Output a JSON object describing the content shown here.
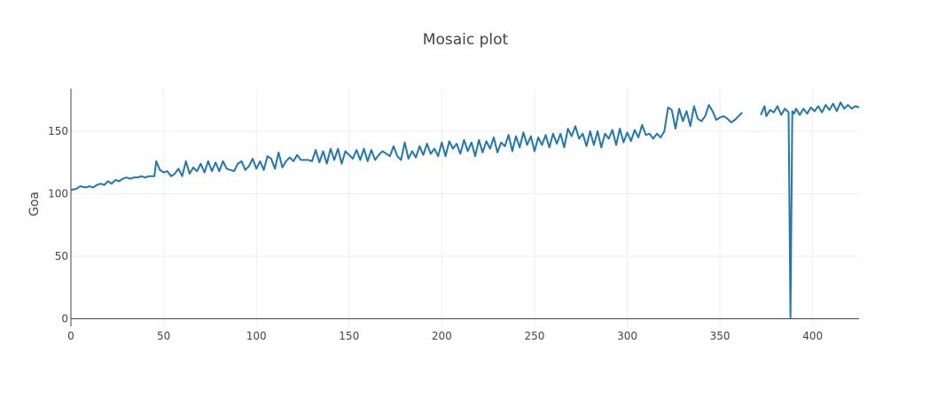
{
  "chart_data": {
    "type": "line",
    "title": "Mosaic plot",
    "xlabel": "",
    "ylabel": "Goa",
    "xlim": [
      0,
      425
    ],
    "ylim": [
      -6,
      184
    ],
    "x_ticks": [
      0,
      50,
      100,
      150,
      200,
      250,
      300,
      350,
      400
    ],
    "y_ticks": [
      0,
      50,
      100,
      150
    ],
    "grid": true,
    "legend": "none",
    "colors": {
      "series": "#1f77b4",
      "grid": "#eeeeee",
      "axis": "#444444",
      "text": "#444444"
    },
    "series": [
      {
        "segments": [
          {
            "x": [
              0,
              3,
              5,
              8,
              10,
              12,
              14,
              16,
              18,
              20,
              22,
              24,
              26,
              28,
              30,
              32,
              34,
              36,
              38,
              40,
              42,
              45,
              46,
              48,
              50,
              52,
              54,
              56,
              58,
              60,
              62,
              64,
              66,
              68,
              70,
              72,
              74,
              76,
              78,
              80,
              82,
              84,
              86,
              88,
              90,
              92,
              94,
              96,
              98,
              100,
              102,
              104,
              106,
              108,
              110,
              112,
              114,
              116,
              118,
              120,
              122,
              124,
              126,
              128,
              130,
              132,
              134,
              136,
              138,
              140,
              142,
              144,
              146,
              148,
              150,
              152,
              154,
              156,
              158,
              160,
              162,
              164,
              166,
              168,
              170,
              172,
              174,
              176,
              178,
              180,
              182,
              184,
              186,
              188,
              190,
              192,
              194,
              196,
              198,
              200,
              202,
              204,
              206,
              208,
              210,
              212,
              214,
              216,
              218,
              220,
              222,
              224,
              226,
              228,
              230,
              232,
              234,
              236,
              238,
              240,
              242,
              244,
              246,
              248,
              250,
              252,
              254,
              256,
              258,
              260,
              262,
              264,
              266,
              268,
              270,
              272,
              274,
              276,
              278,
              280,
              282,
              284,
              286,
              288,
              290,
              292,
              294,
              296,
              298,
              300,
              302,
              304,
              306,
              308,
              310,
              312,
              314,
              316,
              318,
              320,
              322,
              324,
              326,
              328,
              330,
              332,
              334,
              336,
              338,
              340,
              342,
              344,
              346,
              348,
              350,
              352,
              354,
              356,
              358,
              360,
              362
            ],
            "y": [
              103,
              104,
              106,
              105,
              106,
              105,
              107,
              108,
              107,
              110,
              108,
              111,
              110,
              112,
              113,
              112,
              113,
              113,
              114,
              113,
              114,
              114,
              126,
              119,
              117,
              118,
              114,
              116,
              120,
              114,
              126,
              116,
              121,
              118,
              124,
              117,
              126,
              118,
              125,
              118,
              126,
              120,
              119,
              118,
              124,
              126,
              119,
              122,
              128,
              120,
              126,
              119,
              130,
              128,
              120,
              133,
              121,
              126,
              129,
              126,
              131,
              127,
              127,
              127,
              126,
              135,
              125,
              134,
              124,
              136,
              127,
              136,
              124,
              134,
              131,
              128,
              135,
              127,
              136,
              126,
              135,
              127,
              131,
              134,
              132,
              130,
              138,
              130,
              127,
              141,
              128,
              134,
              129,
              138,
              131,
              140,
              132,
              136,
              130,
              141,
              130,
              142,
              136,
              140,
              132,
              143,
              134,
              141,
              130,
              143,
              133,
              142,
              136,
              145,
              133,
              141,
              138,
              147,
              134,
              146,
              137,
              149,
              139,
              146,
              134,
              145,
              139,
              147,
              137,
              148,
              140,
              148,
              137,
              152,
              146,
              154,
              144,
              148,
              138,
              150,
              139,
              150,
              137,
              148,
              144,
              151,
              139,
              152,
              141,
              149,
              142,
              151,
              145,
              155,
              147,
              148,
              144,
              148,
              145,
              150,
              169,
              167,
              152,
              168,
              158,
              166,
              154,
              170,
              160,
              158,
              162,
              171,
              166,
              159,
              161,
              162,
              160,
              157,
              159,
              162,
              165
            ]
          },
          {
            "x": [
              372,
              374,
              375,
              377,
              379,
              381,
              383,
              385,
              387,
              388,
              389,
              390,
              391,
              393,
              395,
              397,
              399,
              401,
              403,
              405,
              407,
              409,
              411,
              413,
              415,
              417,
              419,
              421,
              423,
              425
            ],
            "y": [
              163,
              170,
              162,
              167,
              165,
              170,
              163,
              168,
              165,
              1,
              166,
              164,
              168,
              163,
              168,
              164,
              169,
              166,
              170,
              165,
              171,
              167,
              172,
              166,
              173,
              168,
              171,
              168,
              170,
              169
            ]
          }
        ]
      }
    ]
  }
}
